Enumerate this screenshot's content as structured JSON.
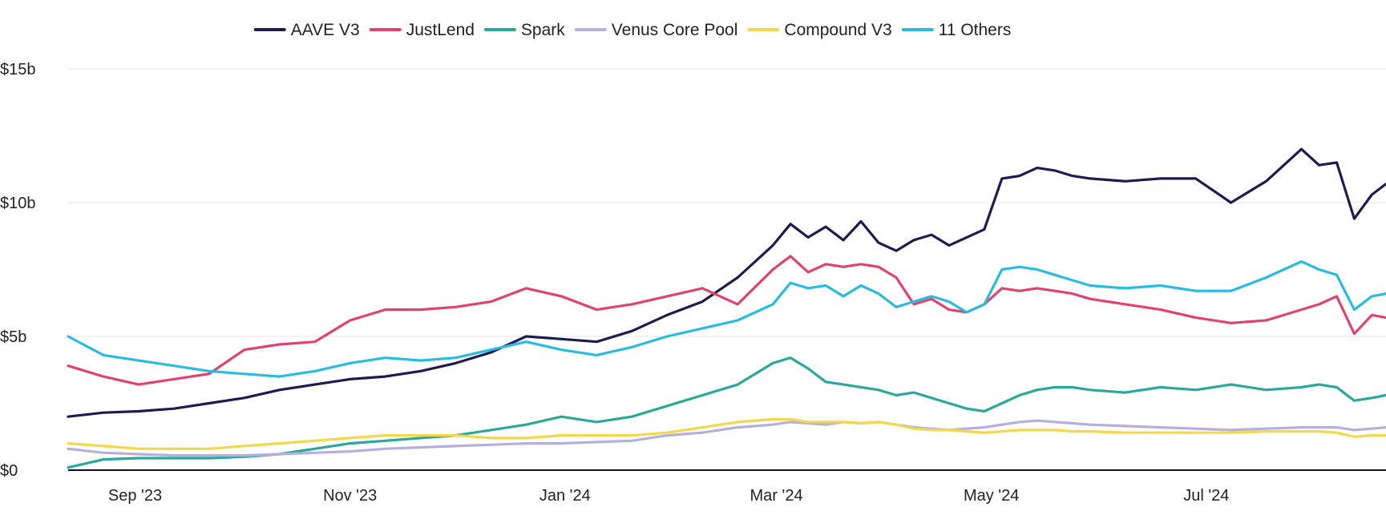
{
  "chart_data": {
    "type": "line",
    "legend_position": "top",
    "grid": true,
    "y_ticks": [
      {
        "value": 0,
        "label": "$0"
      },
      {
        "value": 5,
        "label": "$5b"
      },
      {
        "value": 10,
        "label": "$10b"
      },
      {
        "value": 15,
        "label": "$15b"
      }
    ],
    "x_ticks": [
      {
        "value": 19,
        "label": "Sep '23"
      },
      {
        "value": 80,
        "label": "Nov '23"
      },
      {
        "value": 141,
        "label": "Jan '24"
      },
      {
        "value": 201,
        "label": "Mar '24"
      },
      {
        "value": 262,
        "label": "May '24"
      },
      {
        "value": 323,
        "label": "Jul '24"
      }
    ],
    "xlim": [
      0,
      374
    ],
    "ylim": [
      0,
      15
    ],
    "x": [
      0,
      10,
      20,
      30,
      40,
      50,
      60,
      70,
      80,
      90,
      100,
      110,
      120,
      130,
      140,
      150,
      160,
      170,
      180,
      190,
      200,
      205,
      210,
      215,
      220,
      225,
      230,
      235,
      240,
      245,
      250,
      255,
      260,
      265,
      270,
      275,
      280,
      285,
      290,
      300,
      310,
      320,
      330,
      340,
      350,
      355,
      360,
      365,
      370,
      374
    ],
    "series": [
      {
        "name": "AAVE V3",
        "color": "#1f1a4f",
        "values": [
          2.0,
          2.15,
          2.2,
          2.3,
          2.5,
          2.7,
          3.0,
          3.2,
          3.4,
          3.5,
          3.7,
          4.0,
          4.4,
          5.0,
          4.9,
          4.8,
          5.2,
          5.8,
          6.3,
          7.2,
          8.4,
          9.2,
          8.7,
          9.1,
          8.6,
          9.3,
          8.5,
          8.2,
          8.6,
          8.8,
          8.4,
          8.7,
          9.0,
          10.9,
          11.0,
          11.3,
          11.2,
          11.0,
          10.9,
          10.8,
          10.9,
          10.9,
          10.0,
          10.8,
          12.0,
          11.4,
          11.5,
          9.4,
          10.3,
          10.7
        ]
      },
      {
        "name": "JustLend",
        "color": "#e0436b",
        "values": [
          3.9,
          3.5,
          3.2,
          3.4,
          3.6,
          4.5,
          4.7,
          4.8,
          5.6,
          6.0,
          6.0,
          6.1,
          6.3,
          6.8,
          6.5,
          6.0,
          6.2,
          6.5,
          6.8,
          6.2,
          7.5,
          8.0,
          7.4,
          7.7,
          7.6,
          7.7,
          7.6,
          7.2,
          6.2,
          6.4,
          6.0,
          5.9,
          6.2,
          6.8,
          6.7,
          6.8,
          6.7,
          6.6,
          6.4,
          6.2,
          6.0,
          5.7,
          5.5,
          5.6,
          6.0,
          6.2,
          6.5,
          5.1,
          5.8,
          5.7
        ]
      },
      {
        "name": "Spark",
        "color": "#2aa89a",
        "values": [
          0.1,
          0.4,
          0.45,
          0.45,
          0.45,
          0.5,
          0.6,
          0.8,
          1.0,
          1.1,
          1.2,
          1.3,
          1.5,
          1.7,
          2.0,
          1.8,
          2.0,
          2.4,
          2.8,
          3.2,
          4.0,
          4.2,
          3.8,
          3.3,
          3.2,
          3.1,
          3.0,
          2.8,
          2.9,
          2.7,
          2.5,
          2.3,
          2.2,
          2.5,
          2.8,
          3.0,
          3.1,
          3.1,
          3.0,
          2.9,
          3.1,
          3.0,
          3.2,
          3.0,
          3.1,
          3.2,
          3.1,
          2.6,
          2.7,
          2.8
        ]
      },
      {
        "name": "Venus Core Pool",
        "color": "#b7aee0",
        "values": [
          0.8,
          0.65,
          0.6,
          0.55,
          0.55,
          0.55,
          0.6,
          0.65,
          0.7,
          0.8,
          0.85,
          0.9,
          0.95,
          1.0,
          1.0,
          1.05,
          1.1,
          1.3,
          1.4,
          1.6,
          1.7,
          1.8,
          1.75,
          1.7,
          1.8,
          1.75,
          1.8,
          1.7,
          1.6,
          1.55,
          1.5,
          1.55,
          1.6,
          1.7,
          1.8,
          1.85,
          1.8,
          1.75,
          1.7,
          1.65,
          1.6,
          1.55,
          1.5,
          1.55,
          1.6,
          1.6,
          1.6,
          1.5,
          1.55,
          1.6
        ]
      },
      {
        "name": "Compound V3",
        "color": "#f2d84a",
        "values": [
          1.0,
          0.9,
          0.8,
          0.8,
          0.8,
          0.9,
          1.0,
          1.1,
          1.2,
          1.3,
          1.3,
          1.3,
          1.2,
          1.2,
          1.3,
          1.3,
          1.3,
          1.4,
          1.6,
          1.8,
          1.9,
          1.9,
          1.8,
          1.8,
          1.8,
          1.75,
          1.8,
          1.7,
          1.55,
          1.5,
          1.5,
          1.45,
          1.4,
          1.45,
          1.5,
          1.5,
          1.5,
          1.45,
          1.45,
          1.4,
          1.4,
          1.4,
          1.4,
          1.45,
          1.45,
          1.45,
          1.4,
          1.25,
          1.3,
          1.3
        ]
      },
      {
        "name": "11 Others",
        "color": "#29bce0",
        "values": [
          5.0,
          4.3,
          4.1,
          3.9,
          3.7,
          3.6,
          3.5,
          3.7,
          4.0,
          4.2,
          4.1,
          4.2,
          4.5,
          4.8,
          4.5,
          4.3,
          4.6,
          5.0,
          5.3,
          5.6,
          6.2,
          7.0,
          6.8,
          6.9,
          6.5,
          6.9,
          6.6,
          6.1,
          6.3,
          6.5,
          6.3,
          5.9,
          6.2,
          7.5,
          7.6,
          7.5,
          7.3,
          7.1,
          6.9,
          6.8,
          6.9,
          6.7,
          6.7,
          7.2,
          7.8,
          7.5,
          7.3,
          6.0,
          6.5,
          6.6
        ]
      }
    ]
  }
}
